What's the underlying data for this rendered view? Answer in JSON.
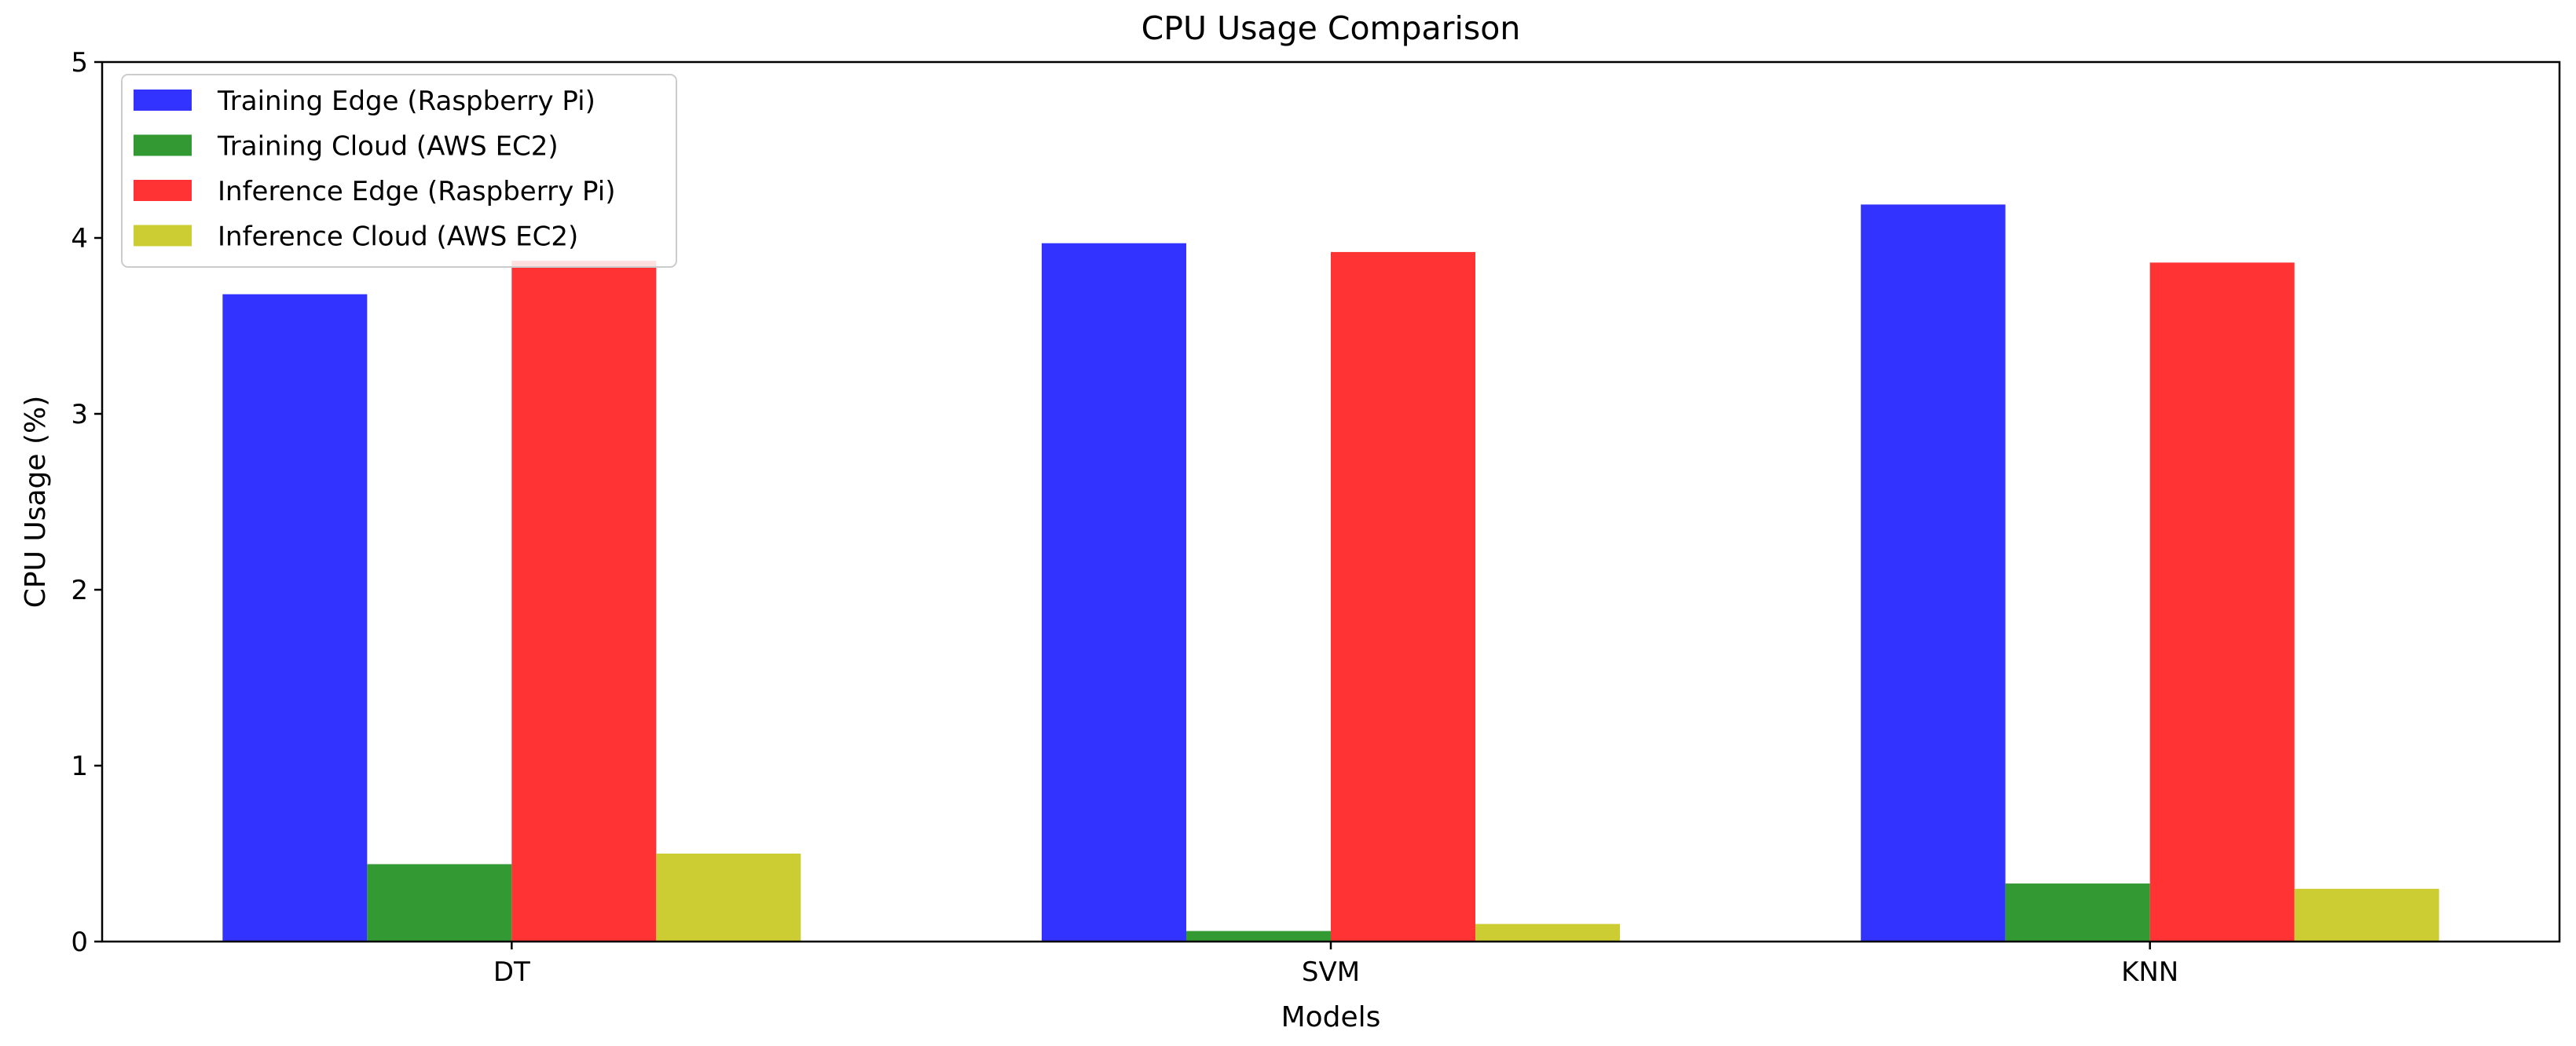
{
  "chart_data": {
    "type": "bar",
    "title": "CPU Usage Comparison",
    "xlabel": "Models",
    "ylabel": "CPU Usage (%)",
    "categories": [
      "DT",
      "SVM",
      "KNN"
    ],
    "ylim": [
      0,
      5
    ],
    "yticks": [
      "0",
      "1",
      "2",
      "3",
      "4",
      "5"
    ],
    "grid": false,
    "legend_position": "top-left",
    "series": [
      {
        "name": "Training Edge (Raspberry Pi)",
        "color": "#3333ff",
        "values": [
          3.68,
          3.97,
          4.19
        ]
      },
      {
        "name": "Training Cloud (AWS EC2)",
        "color": "#339933",
        "values": [
          0.44,
          0.06,
          0.33
        ]
      },
      {
        "name": "Inference Edge (Raspberry Pi)",
        "color": "#ff3333",
        "values": [
          3.87,
          3.92,
          3.86
        ]
      },
      {
        "name": "Inference Cloud (AWS EC2)",
        "color": "#cccc33",
        "values": [
          0.5,
          0.1,
          0.3
        ]
      }
    ]
  }
}
